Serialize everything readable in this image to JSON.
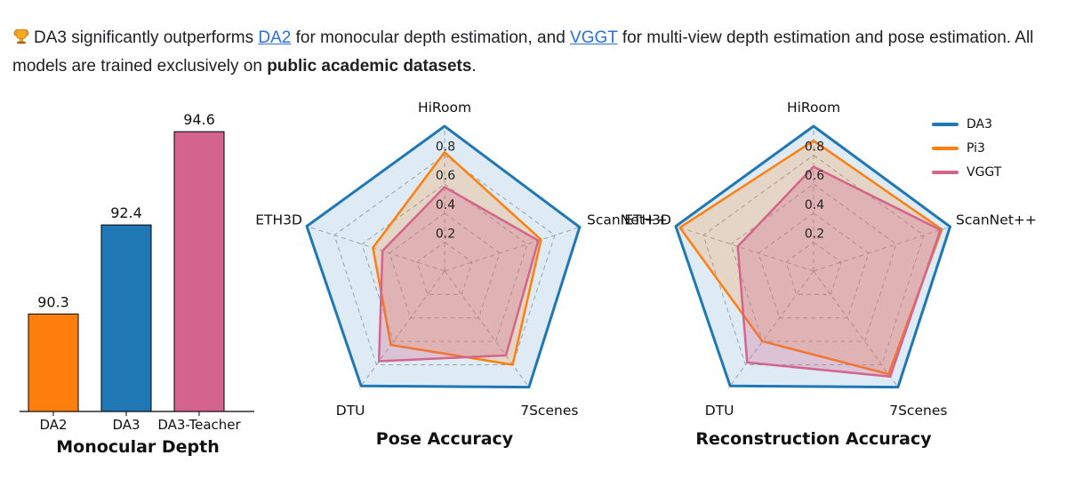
{
  "header": {
    "text_part1": "DA3 significantly outperforms ",
    "link1_label": "DA2",
    "text_part2": " for monocular depth estimation, and ",
    "link2_label": "VGGT",
    "text_part3": " for multi-view depth estimation and pose estimation. All models are trained exclusively on ",
    "bold_text": "public academic datasets",
    "text_part4": "."
  },
  "colors": {
    "da3_blue": "#1f77b4",
    "pi3_orange": "#ff7f0e",
    "vggt_pink": "#d4648c",
    "link": "#2b6fdb",
    "grid": "#aaaaaa",
    "axis": "#000000"
  },
  "legend": {
    "entries": [
      {
        "label": "DA3",
        "color": "#1f77b4"
      },
      {
        "label": "Pi3",
        "color": "#ff7f0e"
      },
      {
        "label": "VGGT",
        "color": "#d4648c"
      }
    ]
  },
  "chart_data": [
    {
      "type": "bar",
      "title": "Monocular Depth",
      "categories": [
        "DA2",
        "DA3",
        "DA3-Teacher"
      ],
      "values": [
        90.3,
        92.4,
        94.6
      ],
      "value_labels": [
        "90.3",
        "92.4",
        "94.6"
      ],
      "bar_colors": [
        "#ff7f0e",
        "#1f77b4",
        "#d4648c"
      ],
      "ylim": [
        88,
        96
      ],
      "xlabel": "",
      "ylabel": ""
    },
    {
      "type": "radar",
      "title": "Pose Accuracy",
      "axes": [
        "HiRoom",
        "ScanNet++",
        "7Scenes",
        "DTU",
        "ETH3D"
      ],
      "ring_labels": [
        "0.2",
        "0.4",
        "0.6",
        "0.8"
      ],
      "rmax": 1.0,
      "series": [
        {
          "name": "DA3",
          "color": "#1f77b4",
          "fill_opacity": 0.15,
          "values": [
            1.0,
            0.98,
            0.99,
            0.98,
            1.0
          ]
        },
        {
          "name": "Pi3",
          "color": "#ff7f0e",
          "fill_opacity": 0.2,
          "values": [
            0.82,
            0.7,
            0.8,
            0.63,
            0.52
          ]
        },
        {
          "name": "VGGT",
          "color": "#d4648c",
          "fill_opacity": 0.3,
          "values": [
            0.58,
            0.68,
            0.72,
            0.77,
            0.45
          ]
        }
      ]
    },
    {
      "type": "radar",
      "title": "Reconstruction Accuracy",
      "axes": [
        "HiRoom",
        "ScanNet++",
        "7Scenes",
        "DTU",
        "ETH3D"
      ],
      "ring_labels": [
        "0.2",
        "0.4",
        "0.6",
        "0.8"
      ],
      "rmax": 1.0,
      "series": [
        {
          "name": "DA3",
          "color": "#1f77b4",
          "fill_opacity": 0.15,
          "values": [
            1.0,
            0.99,
            0.99,
            0.98,
            1.0
          ]
        },
        {
          "name": "Pi3",
          "color": "#ff7f0e",
          "fill_opacity": 0.2,
          "values": [
            0.9,
            0.93,
            0.88,
            0.6,
            0.97
          ]
        },
        {
          "name": "VGGT",
          "color": "#d4648c",
          "fill_opacity": 0.3,
          "values": [
            0.72,
            0.92,
            0.9,
            0.78,
            0.55
          ]
        }
      ]
    }
  ]
}
